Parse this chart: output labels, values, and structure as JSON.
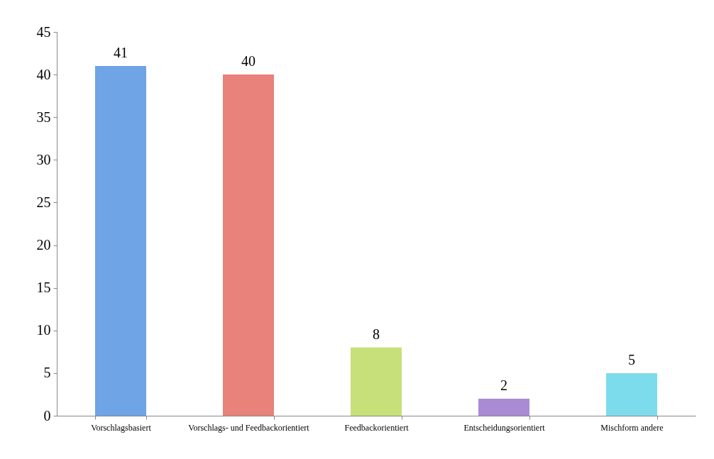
{
  "chart_data": {
    "type": "bar",
    "categories": [
      "Vorschlagsbasiert",
      "Vorschlags- und\nFeedbackorientiert",
      "Feedbackorientiert",
      "Entscheidungsorientiert",
      "Mischform andere"
    ],
    "values": [
      41,
      40,
      8,
      2,
      5
    ],
    "colors": [
      "#6fa4e6",
      "#e8827a",
      "#c8e07a",
      "#a98bd3",
      "#7ddcec"
    ],
    "ylim": [
      0,
      45
    ],
    "yticks": [
      0,
      5,
      10,
      15,
      20,
      25,
      30,
      35,
      40,
      45
    ],
    "grid": false,
    "data_labels": true
  }
}
